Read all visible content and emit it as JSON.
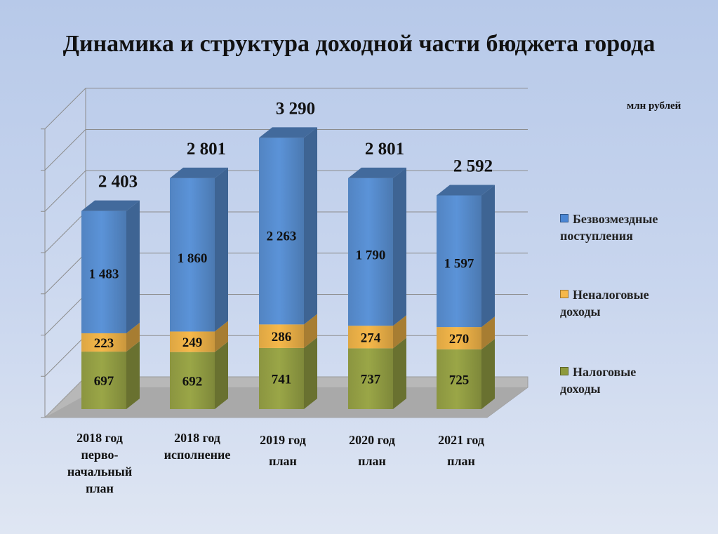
{
  "title": "Динамика и структура доходной части бюджета города",
  "unit": "млн рублей",
  "colors": {
    "tax": "#9aa647",
    "nontax": "#f6b84a",
    "free": "#5b93d8"
  },
  "chart_data": {
    "type": "bar",
    "stacked": true,
    "three_d": true,
    "categories": [
      [
        "2018 год",
        "перво-",
        "начальный",
        "план"
      ],
      [
        "2018 год",
        "исполнение"
      ],
      [
        "2019 год",
        "план"
      ],
      [
        "2020 год",
        "план"
      ],
      [
        "2021 год",
        "план"
      ]
    ],
    "series": [
      {
        "name": "Налоговые доходы",
        "values": [
          697,
          692,
          741,
          737,
          725
        ],
        "labels": [
          "697",
          "692",
          "741",
          "737",
          "725"
        ]
      },
      {
        "name": "Неналоговые доходы",
        "values": [
          223,
          249,
          286,
          274,
          270
        ],
        "labels": [
          "223",
          "249",
          "286",
          "274",
          "270"
        ]
      },
      {
        "name": "Безвозмездные поступления",
        "values": [
          1483,
          1860,
          2263,
          1790,
          1597
        ],
        "labels": [
          "1 483",
          "1 860",
          "2 263",
          "1 790",
          "1 597"
        ]
      }
    ],
    "totals": [
      "2 403",
      "2 801",
      "3 290",
      "2 801",
      "2 592"
    ],
    "ylim": [
      0,
      3500
    ],
    "grid": true,
    "legend_position": "right"
  },
  "legend": [
    {
      "lines": [
        "Безвозмездные",
        "поступления"
      ]
    },
    {
      "lines": [
        "Неналоговые",
        "доходы"
      ]
    },
    {
      "lines": [
        "Налоговые",
        "доходы"
      ]
    }
  ]
}
